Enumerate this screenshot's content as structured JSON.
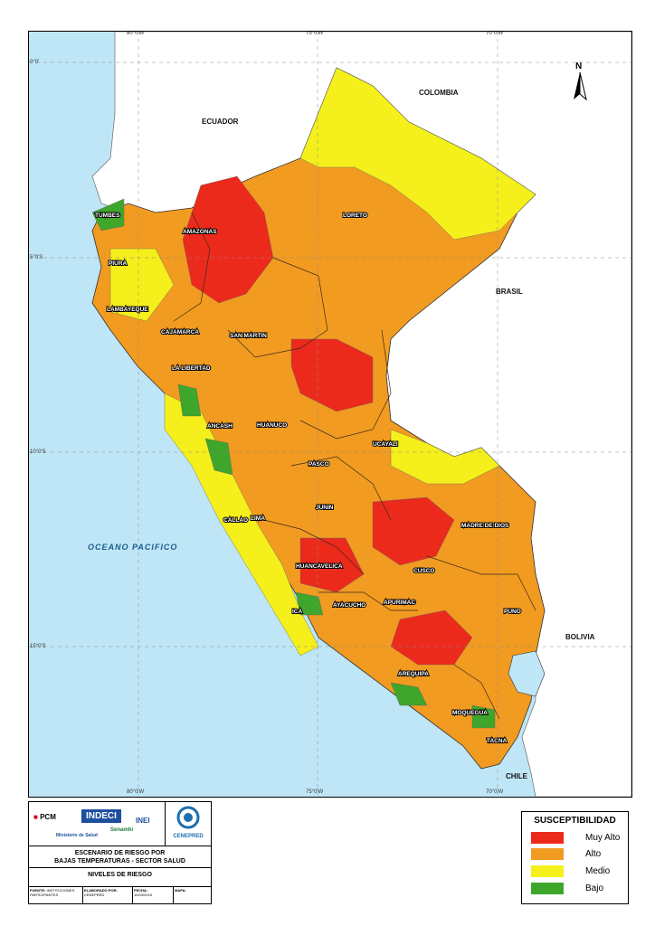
{
  "map": {
    "countries": {
      "colombia": "COLOMBIA",
      "ecuador": "ECUADOR",
      "brasil": "BRASIL",
      "bolivia": "BOLIVIA",
      "chile": "CHILE"
    },
    "ocean": "OCEANO PACIFICO",
    "north_label": "N",
    "grid": {
      "top_left": "80°0'W",
      "top_mid": "75°0'W",
      "top_right": "70°0'W",
      "bottom_left": "80°0'W",
      "bottom_mid": "75°0'W",
      "bottom_right": "70°0'W",
      "lat_0": "0°0'",
      "lat_5": "5°0'S",
      "lat_10": "10°0'S",
      "lat_15": "15°0'S"
    },
    "departments": [
      "TUMBES",
      "PIURA",
      "LAMBAYEQUE",
      "CAJAMARCA",
      "AMAZONAS",
      "LORETO",
      "SAN MARTIN",
      "LA LIBERTAD",
      "ANCASH",
      "HUANUCO",
      "UCAYALI",
      "PASCO",
      "JUNIN",
      "LIMA",
      "CALLAO",
      "HUANCAVELICA",
      "ICA",
      "AYACUCHO",
      "APURIMAC",
      "CUSCO",
      "MADRE DE DIOS",
      "PUNO",
      "AREQUIPA",
      "MOQUEGUA",
      "TACNA"
    ]
  },
  "colors": {
    "muy_alto": "#ec2a1c",
    "alto": "#f29b21",
    "medio": "#f5ef1b",
    "bajo": "#3ea62b",
    "sea": "#bfe6f7",
    "land": "#ffffff"
  },
  "legend": {
    "title": "SUSCEPTIBILIDAD",
    "items": [
      {
        "label": "Muy Alto",
        "color": "#ec2a1c"
      },
      {
        "label": "Alto",
        "color": "#f29b21"
      },
      {
        "label": "Medio",
        "color": "#f5ef1b"
      },
      {
        "label": "Bajo",
        "color": "#3ea62b"
      }
    ]
  },
  "footer": {
    "logos": {
      "pcm": "PCM",
      "indeci": "INDECI",
      "inei": "INEI",
      "minsa": "Ministerio de Salud",
      "senamhi": "Senamhi",
      "cenepred": "CENEPRED"
    },
    "title_line1": "ESCENARIO DE RIESGO POR",
    "title_line2": "BAJAS TEMPERATURAS - SECTOR SALUD",
    "subtitle": "NIVELES DE RIESGO",
    "meta": {
      "fuente_label": "FUENTE:",
      "fuente_value": "INSTITUCIONES PARTICIPANTES",
      "elaborado_label": "ELABORADO POR:",
      "elaborado_value": "CENEPRED",
      "fecha_label": "FECHA:",
      "fecha_value": "10/03/2015",
      "mapa_label": "MAPA:"
    }
  }
}
